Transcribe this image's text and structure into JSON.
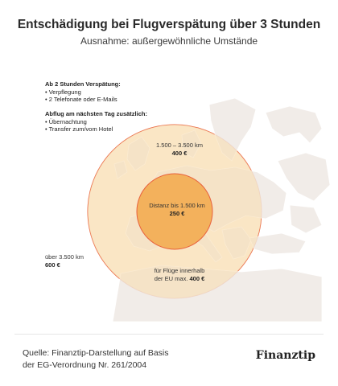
{
  "header": {
    "title": "Entschädigung bei Flugverspätung über 3 Stunden",
    "subtitle": "Ausnahme: außergewöhnliche Umstände"
  },
  "info_block_1": {
    "heading": "Ab 2 Stunden Verspätung:",
    "items": [
      "• Verpflegung",
      "• 2 Telefonate oder E-Mails"
    ]
  },
  "info_block_2": {
    "heading": "Abflug am nächsten Tag zusätzlich:",
    "items": [
      "• Übernachtung",
      "• Transfer zum/vom Hotel"
    ]
  },
  "zones": {
    "inner": {
      "line1": "Distanz bis 1.500 km",
      "line2": "250 €"
    },
    "middle": {
      "line1": "1.500 – 3.500 km",
      "line2": "400 €"
    },
    "eu": {
      "line1": "für Flüge innerhalb",
      "line2": "der EU max.",
      "amount": "400 €"
    },
    "outer": {
      "line1": "über 3.500 km",
      "line2": "600 €"
    }
  },
  "colors": {
    "outer_fill": "#fdf1dd",
    "middle_fill": "#f8dcb0",
    "inner_fill": "#f3b15c",
    "circle_stroke": "#e8603c"
  },
  "footer": {
    "source_line1": "Quelle: Finanztip-Darstellung auf Basis",
    "source_line2": "der EG-Verordnung Nr. 261/2004",
    "logo": "Finanztip"
  }
}
